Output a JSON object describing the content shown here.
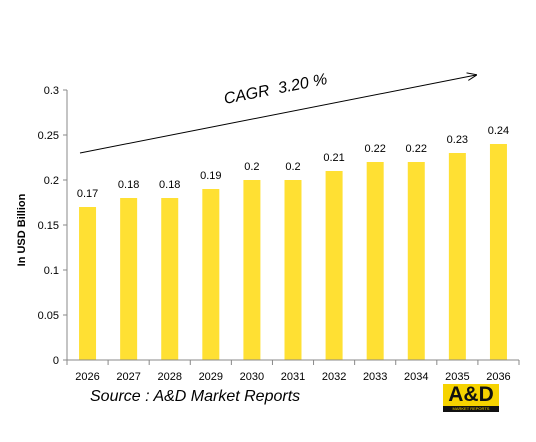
{
  "chart_data": {
    "type": "bar",
    "title": "",
    "xlabel": "",
    "ylabel": "In USD Billion",
    "categories": [
      "2026",
      "2027",
      "2028",
      "2029",
      "2030",
      "2031",
      "2032",
      "2033",
      "2034",
      "2035",
      "2036"
    ],
    "values": [
      0.17,
      0.18,
      0.18,
      0.19,
      0.2,
      0.2,
      0.21,
      0.22,
      0.22,
      0.23,
      0.24
    ],
    "data_labels": [
      "0.17",
      "0.18",
      "0.18",
      "0.19",
      "0.2",
      "0.2",
      "0.21",
      "0.22",
      "0.22",
      "0.23",
      "0.24"
    ],
    "ylim": [
      0,
      0.3
    ],
    "yticks": [
      0,
      0.05,
      0.1,
      0.15,
      0.2,
      0.25,
      0.3
    ],
    "ytick_labels": [
      "0",
      "0.05",
      "0.1",
      "0.15",
      "0.2",
      "0.25",
      "0.3"
    ],
    "grid": false,
    "bar_color": "#FFE033",
    "annotation": "CAGR  3.20 %"
  },
  "source_text": "Source : A&D Market Reports",
  "logo": {
    "text": "A&D",
    "subtext": "MARKET REPORTS"
  }
}
